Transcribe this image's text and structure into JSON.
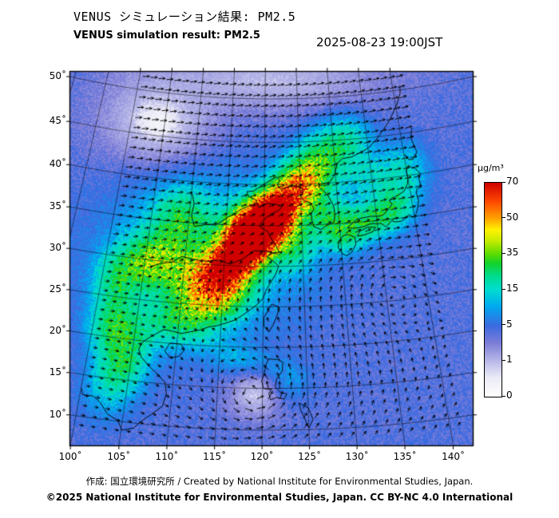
{
  "header": {
    "title_jp": "VENUS シミュレーション結果: PM2.5",
    "title_en": "VENUS simulation result: PM2.5",
    "datetime": "2025-08-23 19:00JST"
  },
  "map": {
    "x_tick_labels": [
      "100˚",
      "105˚",
      "110˚",
      "115˚",
      "120˚",
      "125˚",
      "130˚",
      "135˚",
      "140˚"
    ],
    "x_tick_lons": [
      100,
      105,
      110,
      115,
      120,
      125,
      130,
      135,
      140
    ],
    "y_tick_labels": [
      "10˚",
      "15˚",
      "20˚",
      "25˚",
      "30˚",
      "35˚",
      "40˚",
      "45˚",
      "50˚"
    ],
    "y_tick_lats": [
      10,
      15,
      20,
      25,
      30,
      35,
      40,
      45,
      50
    ]
  },
  "colorbar": {
    "unit": "µg/m³",
    "tick_labels": [
      "0",
      "1",
      "5",
      "15",
      "35",
      "50",
      "70"
    ],
    "tick_values": [
      0,
      1,
      5,
      15,
      35,
      50,
      70
    ],
    "gradient": [
      {
        "t": 0.0,
        "c": "#ffffff"
      },
      {
        "t": 0.09,
        "c": "#eaeaf6"
      },
      {
        "t": 0.167,
        "c": "#b8b8e8"
      },
      {
        "t": 0.25,
        "c": "#7d7dd8"
      },
      {
        "t": 0.333,
        "c": "#3a6ae0"
      },
      {
        "t": 0.42,
        "c": "#00a8f0"
      },
      {
        "t": 0.5,
        "c": "#00dcd0"
      },
      {
        "t": 0.565,
        "c": "#00dc8c"
      },
      {
        "t": 0.625,
        "c": "#14d228"
      },
      {
        "t": 0.667,
        "c": "#5cdc00"
      },
      {
        "t": 0.73,
        "c": "#c8ec00"
      },
      {
        "t": 0.78,
        "c": "#fff200"
      },
      {
        "t": 0.833,
        "c": "#ffa200"
      },
      {
        "t": 0.91,
        "c": "#ff4a00"
      },
      {
        "t": 1.0,
        "c": "#d00000"
      }
    ]
  },
  "footer": {
    "credit": "作成: 国立環境研究所 / Created by National Institute for Environmental Studies, Japan.",
    "license": "©2025 National Institute for Environmental Studies, Japan. CC BY-NC 4.0 International"
  },
  "chart_data": {
    "type": "heatmap",
    "title": "VENUS simulation result: PM2.5",
    "datetime": "2025-08-23 19:00JST",
    "unit": "µg/m³",
    "lon_range": [
      100,
      142
    ],
    "lat_range": [
      8,
      53
    ],
    "scale_ticks": [
      0,
      1,
      5,
      15,
      35,
      50,
      70
    ],
    "base_level": 4.2,
    "plumes": [
      {
        "lon": 117.2,
        "lat": 31.8,
        "peak": 62,
        "sx": 4.6,
        "sy": 1.9,
        "rot": 52
      },
      {
        "lon": 120.6,
        "lat": 35.6,
        "peak": 66,
        "sx": 2.8,
        "sy": 1.7,
        "rot": 40
      },
      {
        "lon": 118.2,
        "lat": 34.3,
        "peak": 48,
        "sx": 2.4,
        "sy": 2.0,
        "rot": 45
      },
      {
        "lon": 124.3,
        "lat": 39.6,
        "peak": 30,
        "sx": 3.2,
        "sy": 1.8,
        "rot": 35
      },
      {
        "lon": 127.8,
        "lat": 42.5,
        "peak": 18,
        "sx": 3.2,
        "sy": 2.2,
        "rot": 25
      },
      {
        "lon": 113.0,
        "lat": 28.6,
        "peak": 28,
        "sx": 3.4,
        "sy": 2.4,
        "rot": 20
      },
      {
        "lon": 106.0,
        "lat": 30.0,
        "peak": 24,
        "sx": 2.6,
        "sy": 2.2,
        "rot": 0
      },
      {
        "lon": 109.0,
        "lat": 35.5,
        "peak": 18,
        "sx": 2.6,
        "sy": 2.4,
        "rot": 0
      },
      {
        "lon": 110.2,
        "lat": 22.8,
        "peak": 16,
        "sx": 3.2,
        "sy": 2.0,
        "rot": 10
      },
      {
        "lon": 104.0,
        "lat": 17.0,
        "peak": 22,
        "sx": 1.9,
        "sy": 3.4,
        "rot": -12
      },
      {
        "lon": 102.2,
        "lat": 21.5,
        "peak": 18,
        "sx": 1.8,
        "sy": 2.2,
        "rot": 0
      },
      {
        "lon": 128.6,
        "lat": 35.8,
        "peak": 15,
        "sx": 2.2,
        "sy": 1.6,
        "rot": 20
      },
      {
        "lon": 133.3,
        "lat": 35.0,
        "peak": 18,
        "sx": 2.8,
        "sy": 1.5,
        "rot": 8
      },
      {
        "lon": 137.4,
        "lat": 36.6,
        "peak": 16,
        "sx": 2.4,
        "sy": 1.8,
        "rot": 30
      },
      {
        "lon": 130.4,
        "lat": 33.2,
        "peak": 13,
        "sx": 1.8,
        "sy": 1.4,
        "rot": 0
      },
      {
        "lon": 139.8,
        "lat": 41.0,
        "peak": 10,
        "sx": 2.2,
        "sy": 2.0,
        "rot": 0
      },
      {
        "lon": 126.3,
        "lat": 38.6,
        "peak": 14,
        "sx": 2.0,
        "sy": 1.6,
        "rot": 10
      },
      {
        "lon": 112.0,
        "lat": 31.5,
        "peak": 10,
        "sx": 8.0,
        "sy": 6.5,
        "rot": 0
      },
      {
        "lon": 123.8,
        "lat": 33.0,
        "peak": 18,
        "sx": 2.0,
        "sy": 2.4,
        "rot": 0
      },
      {
        "lon": 117.5,
        "lat": 18.5,
        "peak": 6,
        "sx": 3.0,
        "sy": 1.3,
        "rot": -15
      },
      {
        "lon": 122.8,
        "lat": 15.8,
        "peak": 5,
        "sx": 1.6,
        "sy": 1.6,
        "rot": 0
      },
      {
        "lon": 132.0,
        "lat": 45.0,
        "peak": 12,
        "sx": 2.5,
        "sy": 1.8,
        "rot": 0
      },
      {
        "lon": 134.5,
        "lat": 40.5,
        "peak": 10,
        "sx": 2.5,
        "sy": 1.8,
        "rot": 0
      },
      {
        "lon": 115.5,
        "lat": 25.5,
        "peak": 12,
        "sx": 2.5,
        "sy": 1.8,
        "rot": 30
      },
      {
        "lon": 102.0,
        "lat": 27.0,
        "peak": 16,
        "sx": 2.0,
        "sy": 2.5,
        "rot": 0
      }
    ],
    "clear_zones": [
      {
        "lon": 104.0,
        "lat": 46.5,
        "depth": 0.93,
        "sx": 6.5,
        "sy": 4.0
      },
      {
        "lon": 119.2,
        "lat": 14.3,
        "depth": 0.82,
        "sx": 2.3,
        "sy": 2.3
      },
      {
        "lon": 121.0,
        "lat": 52.0,
        "depth": 0.75,
        "sx": 14.0,
        "sy": 2.6
      }
    ],
    "wind": {
      "base": {
        "u0": 2.5,
        "u1": 6.0,
        "lat0": 36,
        "dl": 3.5,
        "v0": 0.8
      },
      "vortices": [
        {
          "lon": 119.2,
          "lat": 14.3,
          "strength": 14,
          "radius": 2.2,
          "dir": 1
        },
        {
          "lon": 134.8,
          "lat": 26.5,
          "strength": 6,
          "radius": 4.2,
          "dir": -1
        }
      ]
    }
  }
}
